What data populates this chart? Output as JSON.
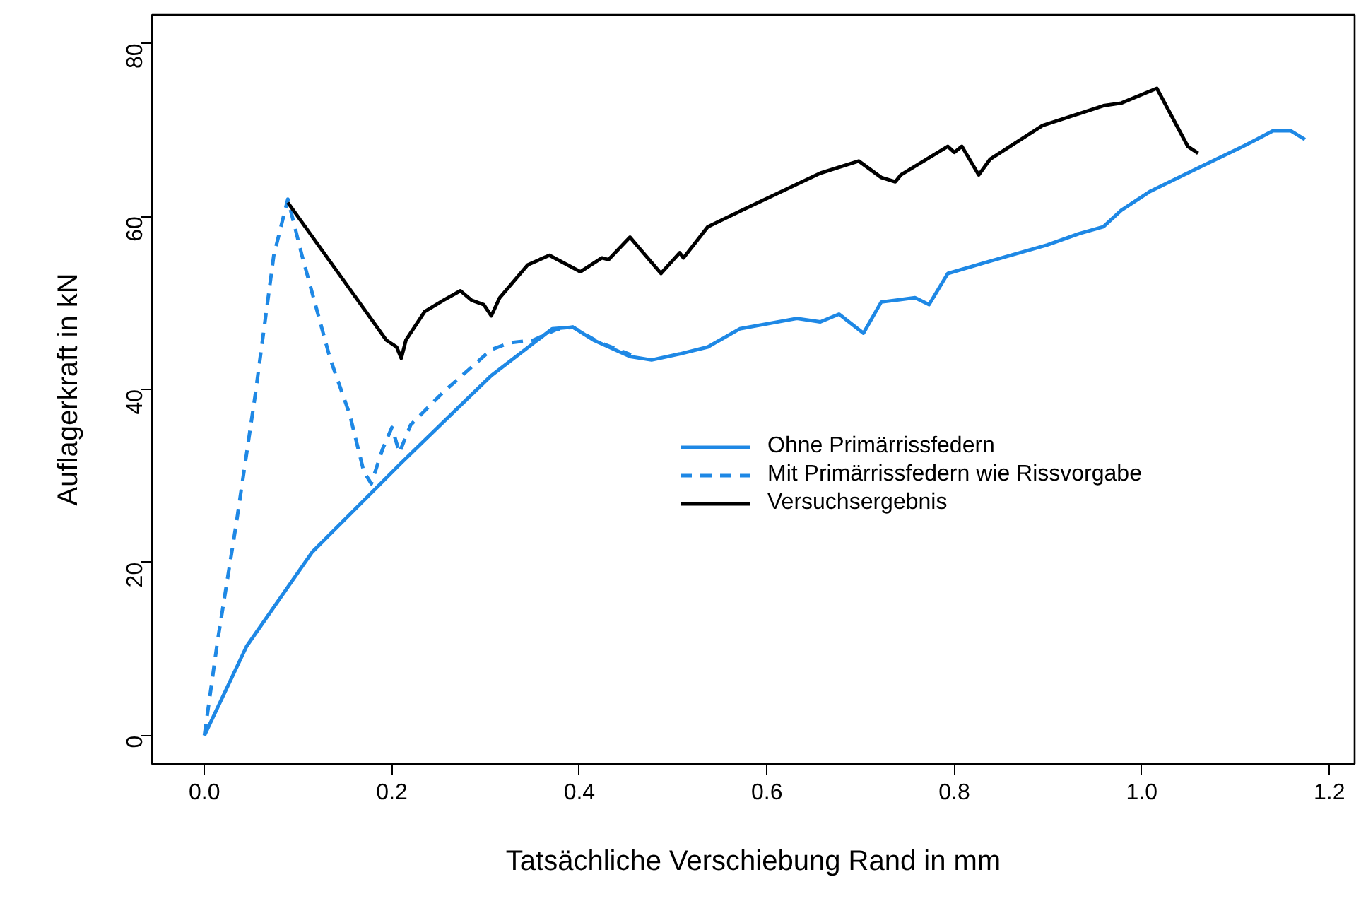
{
  "chart_data": {
    "type": "line",
    "xlabel": "Tatsächliche Verschiebung Rand in mm",
    "ylabel": "Auflagerkraft in kN",
    "xlim": [
      -0.056,
      1.227
    ],
    "ylim": [
      -3.3,
      83.3
    ],
    "xticks": [
      {
        "value": 0,
        "label": "0.0"
      },
      0.2,
      0.4,
      0.6,
      0.8,
      {
        "value": 1,
        "label": "1.0"
      },
      1.2
    ],
    "yticks": [
      0,
      20,
      40,
      60,
      80
    ],
    "grid": false,
    "legend": "right",
    "series": [
      {
        "name": "Ohne Primärrissfedern",
        "color": "#1e88e5",
        "line_style": "solid",
        "x": [
          0,
          0.045,
          0.115,
          0.21,
          0.306,
          0.371,
          0.393,
          0.415,
          0.454,
          0.477,
          0.507,
          0.537,
          0.571,
          0.632,
          0.657,
          0.677,
          0.703,
          0.722,
          0.758,
          0.773,
          0.793,
          0.834,
          0.899,
          0.933,
          0.959,
          0.978,
          1.009,
          1.06,
          1.11,
          1.14,
          1.159,
          1.174
        ],
        "values": [
          0,
          10.3,
          21.2,
          31.5,
          41.6,
          47,
          47.2,
          45.7,
          43.8,
          43.4,
          44.1,
          44.9,
          47,
          48.2,
          47.8,
          48.7,
          46.5,
          50.1,
          50.6,
          49.8,
          53.4,
          54.7,
          56.7,
          58,
          58.8,
          60.7,
          62.9,
          65.6,
          68.2,
          69.9,
          69.9,
          68.9
        ]
      },
      {
        "name": "Mit Primärrissfedern wie Rissvorgabe",
        "color": "#1e88e5",
        "line_style": "dashed",
        "x": [
          0,
          0.014,
          0.034,
          0.054,
          0.074,
          0.089,
          0.104,
          0.134,
          0.155,
          0.17,
          0.178,
          0.19,
          0.2,
          0.208,
          0.22,
          0.255,
          0.306,
          0.326,
          0.351,
          0.375,
          0.393,
          0.42,
          0.455
        ],
        "values": [
          0,
          10.9,
          24.5,
          39.2,
          55.5,
          62,
          55.5,
          43.6,
          37.1,
          30.5,
          29.1,
          33.1,
          35.6,
          32.7,
          35.9,
          39.7,
          44.6,
          45.4,
          45.7,
          46.9,
          47.2,
          45.5,
          44.0
        ]
      },
      {
        "name": "Versuchsergebnis",
        "color": "#000000",
        "line_style": "solid",
        "x": [
          0.089,
          0.194,
          0.205,
          0.21,
          0.215,
          0.235,
          0.255,
          0.273,
          0.285,
          0.298,
          0.306,
          0.315,
          0.345,
          0.368,
          0.401,
          0.424,
          0.431,
          0.454,
          0.461,
          0.487,
          0.507,
          0.511,
          0.537,
          0.577,
          0.657,
          0.698,
          0.722,
          0.737,
          0.743,
          0.793,
          0.8,
          0.808,
          0.826,
          0.838,
          0.894,
          0.959,
          0.978,
          1.016,
          1.049,
          1.06
        ],
        "values": [
          61.6,
          45.7,
          44.9,
          43.6,
          45.7,
          49,
          50.3,
          51.4,
          50.3,
          49.8,
          48.5,
          50.6,
          54.4,
          55.5,
          53.6,
          55.2,
          55,
          57.6,
          56.7,
          53.4,
          55.8,
          55.2,
          58.8,
          60.9,
          65,
          66.4,
          64.5,
          64,
          64.8,
          68.1,
          67.4,
          68.1,
          64.8,
          66.6,
          70.5,
          72.8,
          73.1,
          74.8,
          68.1,
          67.3
        ]
      }
    ]
  }
}
